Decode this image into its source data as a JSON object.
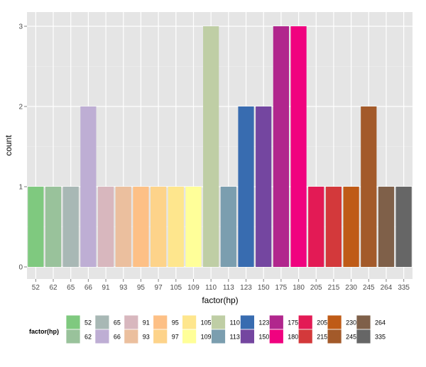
{
  "chart_data": {
    "type": "bar",
    "title": "",
    "xlabel": "factor(hp)",
    "ylabel": "count",
    "ylim": [
      0,
      3.2
    ],
    "yticks": [
      0,
      1,
      2,
      3
    ],
    "grid": true,
    "legend_title": "factor(hp)",
    "legend_position": "bottom",
    "categories": [
      "52",
      "62",
      "65",
      "66",
      "91",
      "93",
      "95",
      "97",
      "105",
      "109",
      "110",
      "113",
      "123",
      "150",
      "175",
      "180",
      "205",
      "215",
      "230",
      "245",
      "264",
      "335"
    ],
    "values": [
      1,
      1,
      1,
      2,
      1,
      1,
      1,
      1,
      1,
      1,
      3,
      1,
      2,
      2,
      3,
      3,
      1,
      1,
      1,
      2,
      1,
      1
    ],
    "colors": [
      "#7FC97F",
      "#99C29B",
      "#A8B8B5",
      "#BEAED4",
      "#D8B7BE",
      "#EBBF9E",
      "#FDC086",
      "#FDD38A",
      "#FEE68D",
      "#FFFF99",
      "#BFCEA5",
      "#7B9EAF",
      "#386CB0",
      "#7446A0",
      "#B1268D",
      "#F0027F",
      "#E31A55",
      "#D3393B",
      "#BF5B17",
      "#A35A2A",
      "#7F6049",
      "#666666"
    ]
  }
}
